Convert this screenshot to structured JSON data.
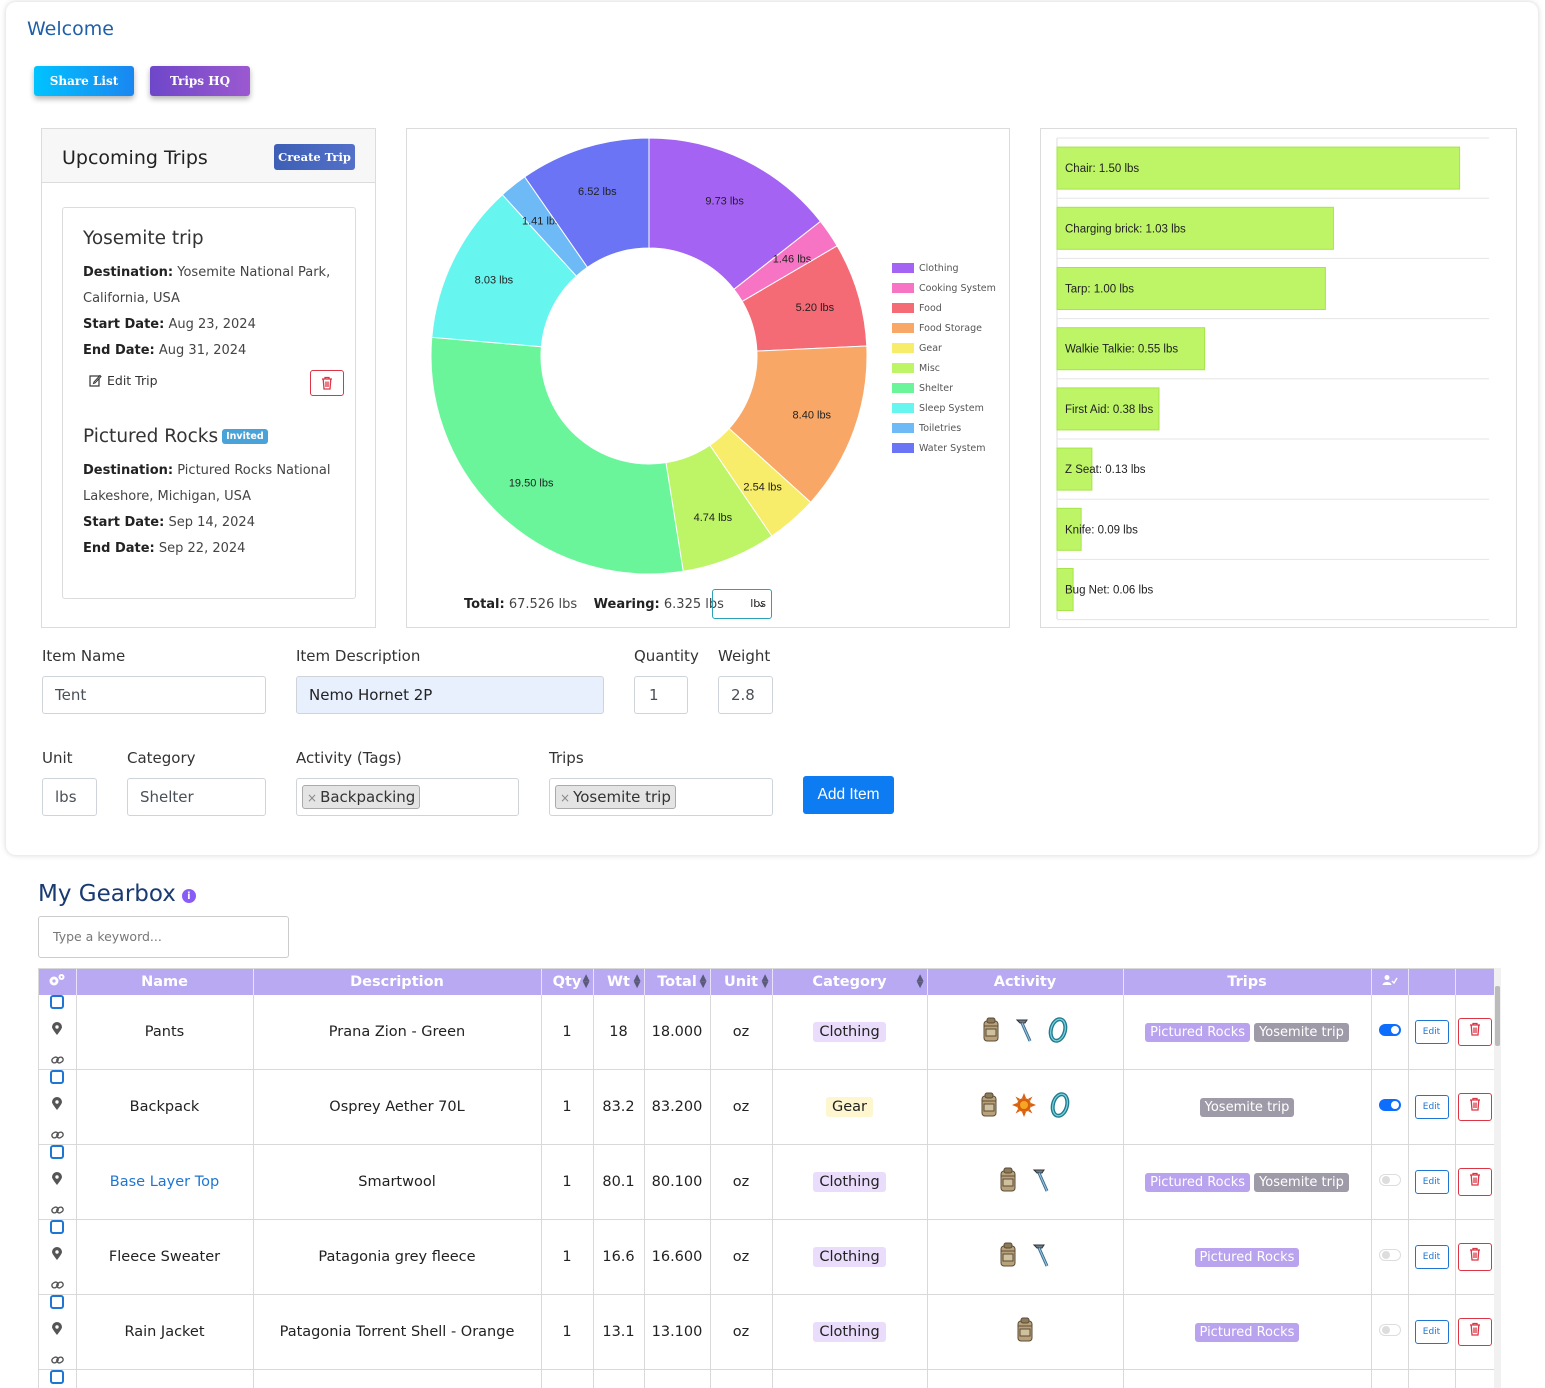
{
  "header": {
    "welcome": "Welcome",
    "share_label": "Share List",
    "trips_hq_label": "Trips HQ"
  },
  "upcoming_trips": {
    "title": "Upcoming Trips",
    "create_label": "Create Trip",
    "edit_label": "Edit Trip",
    "trips": [
      {
        "name": "Yosemite trip",
        "destination_label": "Destination:",
        "destination": "Yosemite National Park, California, USA",
        "start_label": "Start Date:",
        "start": "Aug 23, 2024",
        "end_label": "End Date:",
        "end": "Aug 31, 2024"
      },
      {
        "name": "Pictured Rocks",
        "badge": "Invited",
        "destination_label": "Destination:",
        "destination": "Pictured Rocks National Lakeshore, Michigan, USA",
        "start_label": "Start Date:",
        "start": "Sep 14, 2024",
        "end_label": "End Date:",
        "end": "Sep 22, 2024"
      }
    ]
  },
  "weight_summary": {
    "total_label": "Total:",
    "total": "67.526 lbs",
    "wearing_label": "Wearing:",
    "wearing": "6.325 lbs",
    "unit": "lbs"
  },
  "chart_data": [
    {
      "type": "pie",
      "variant": "donut",
      "categories": [
        "Clothing",
        "Cooking System",
        "Food",
        "Food Storage",
        "Gear",
        "Misc",
        "Shelter",
        "Sleep System",
        "Toiletries",
        "Water System"
      ],
      "values": [
        9.73,
        1.46,
        5.2,
        8.4,
        2.54,
        4.74,
        19.5,
        8.03,
        1.41,
        6.52
      ],
      "labels": [
        "9.73 lbs",
        "1.46 lbs",
        "5.20 lbs",
        "8.40 lbs",
        "2.54 lbs",
        "4.74 lbs",
        "19.50 lbs",
        "8.03 lbs",
        "1.41 lbs",
        "6.52 lbs"
      ],
      "colors": [
        "#a463f2",
        "#f774c4",
        "#f46a75",
        "#f8a766",
        "#f8ec6b",
        "#bdf566",
        "#6af59b",
        "#67f6ef",
        "#6ebaf7",
        "#6a74f5"
      ],
      "legend": "right"
    },
    {
      "type": "bar",
      "orientation": "horizontal",
      "categories": [
        "Chair",
        "Charging brick",
        "Tarp",
        "Walkie Talkie",
        "First Aid",
        "Z Seat",
        "Knife",
        "Bug Net"
      ],
      "values": [
        1.5,
        1.03,
        1.0,
        0.55,
        0.38,
        0.13,
        0.09,
        0.06
      ],
      "labels": [
        "Chair: 1.50 lbs",
        "Charging brick: 1.03 lbs",
        "Tarp: 1.00 lbs",
        "Walkie Talkie: 0.55 lbs",
        "First Aid: 0.38 lbs",
        "Z Seat: 0.13 lbs",
        "Knife: 0.09 lbs",
        "Bug Net: 0.06 lbs"
      ],
      "color": "#bdf566",
      "xlim": [
        0,
        1.55
      ]
    }
  ],
  "item_form": {
    "item_name_label": "Item Name",
    "item_name_value": "Tent",
    "item_description_label": "Item Description",
    "item_description_value": "Nemo Hornet 2P",
    "quantity_label": "Quantity",
    "quantity_value": "1",
    "weight_label": "Weight",
    "weight_value": "2.8",
    "unit_label": "Unit",
    "unit_value": "lbs",
    "category_label": "Category",
    "category_value": "Shelter",
    "activity_label": "Activity (Tags)",
    "activity_tag": "Backpacking",
    "trips_label": "Trips",
    "trips_tag": "Yosemite trip",
    "tag_remove": "×",
    "add_label": "Add Item"
  },
  "gearbox": {
    "title": "My Gearbox",
    "info_icon": "i",
    "search_placeholder": "Type a keyword...",
    "columns": [
      "Name",
      "Description",
      "Qty",
      "Wt",
      "Total",
      "Unit",
      "Category",
      "Activity",
      "Trips"
    ],
    "edit_label": "Edit",
    "category_colors": {
      "Clothing": "#eadcfb",
      "Gear": "#fdf6cf"
    },
    "trip_colors": {
      "Pictured Rocks": "#b9a2ee",
      "Yosemite trip": "#9f9aa8"
    },
    "rows": [
      {
        "name": "Pants",
        "link": false,
        "description": "Prana Zion - Green",
        "qty": "1",
        "wt": "18",
        "total": "18.000",
        "unit": "oz",
        "category": "Clothing",
        "activity": [
          "backpack-icon",
          "trekking-pole-icon",
          "ring-icon"
        ],
        "trips": [
          "Pictured Rocks",
          "Yosemite trip"
        ],
        "wearing": true
      },
      {
        "name": "Backpack",
        "link": false,
        "description": "Osprey Aether 70L",
        "qty": "1",
        "wt": "83.2",
        "total": "83.200",
        "unit": "oz",
        "category": "Gear",
        "activity": [
          "backpack-icon",
          "sun-icon",
          "ring-icon"
        ],
        "trips": [
          "Yosemite trip"
        ],
        "wearing": true
      },
      {
        "name": "Base Layer Top",
        "link": true,
        "description": "Smartwool",
        "qty": "1",
        "wt": "80.1",
        "total": "80.100",
        "unit": "oz",
        "category": "Clothing",
        "activity": [
          "backpack-icon",
          "trekking-pole-icon"
        ],
        "trips": [
          "Pictured Rocks",
          "Yosemite trip"
        ],
        "wearing": false
      },
      {
        "name": "Fleece Sweater",
        "link": false,
        "description": "Patagonia grey fleece",
        "qty": "1",
        "wt": "16.6",
        "total": "16.600",
        "unit": "oz",
        "category": "Clothing",
        "activity": [
          "backpack-icon",
          "trekking-pole-icon"
        ],
        "trips": [
          "Pictured Rocks"
        ],
        "wearing": false
      },
      {
        "name": "Rain Jacket",
        "link": false,
        "description": "Patagonia Torrent Shell - Orange",
        "qty": "1",
        "wt": "13.1",
        "total": "13.100",
        "unit": "oz",
        "category": "Clothing",
        "activity": [
          "backpack-icon"
        ],
        "trips": [
          "Pictured Rocks"
        ],
        "wearing": false
      }
    ]
  }
}
